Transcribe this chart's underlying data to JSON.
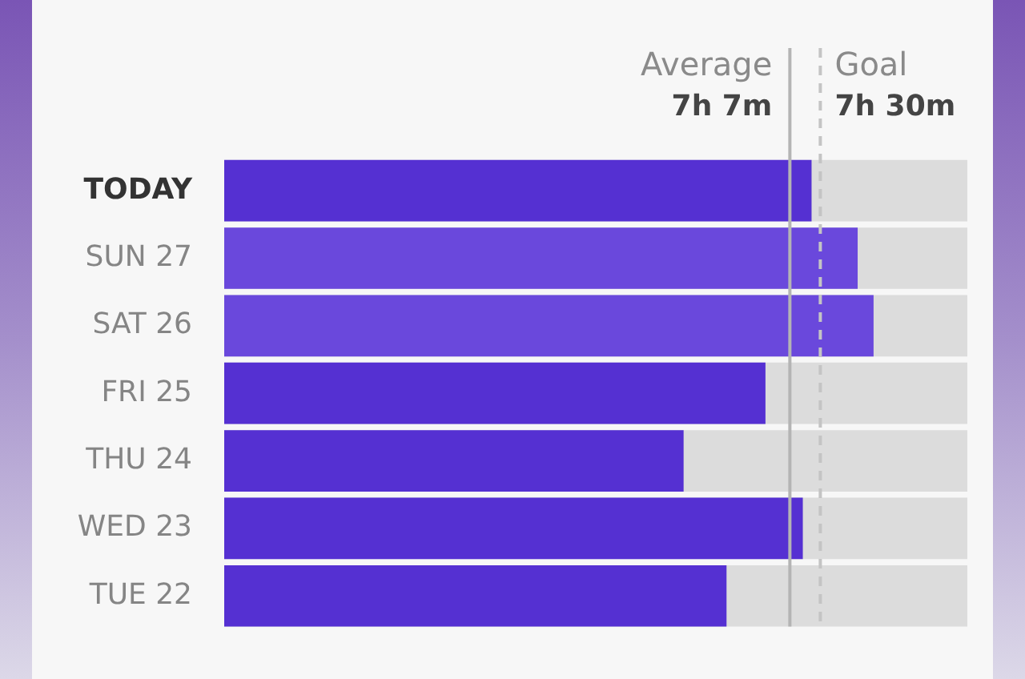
{
  "chart_data": {
    "type": "bar",
    "orientation": "horizontal",
    "categories": [
      "TODAY",
      "SUN 27",
      "SAT 26",
      "FRI 25",
      "THU 24",
      "WED 23",
      "TUE 22"
    ],
    "values": [
      7.39,
      7.97,
      8.17,
      6.81,
      5.78,
      7.28,
      6.32
    ],
    "colors": [
      "#5530d2",
      "#6a48dc",
      "#6a48dc",
      "#5530d2",
      "#5530d2",
      "#5530d2",
      "#5530d2"
    ],
    "xlim": [
      0,
      9.35
    ],
    "ref_lines": [
      {
        "axis": "x",
        "value": 7.117,
        "label": "Average\n7h 7m",
        "color": "#b4b4b4"
      },
      {
        "axis": "x",
        "value": 7.5,
        "label": "Goal\n7h 30m",
        "color": "#c4c4c4",
        "line_style": "dashed"
      }
    ],
    "tick_labels": "y",
    "grid": false,
    "legend": false
  }
}
